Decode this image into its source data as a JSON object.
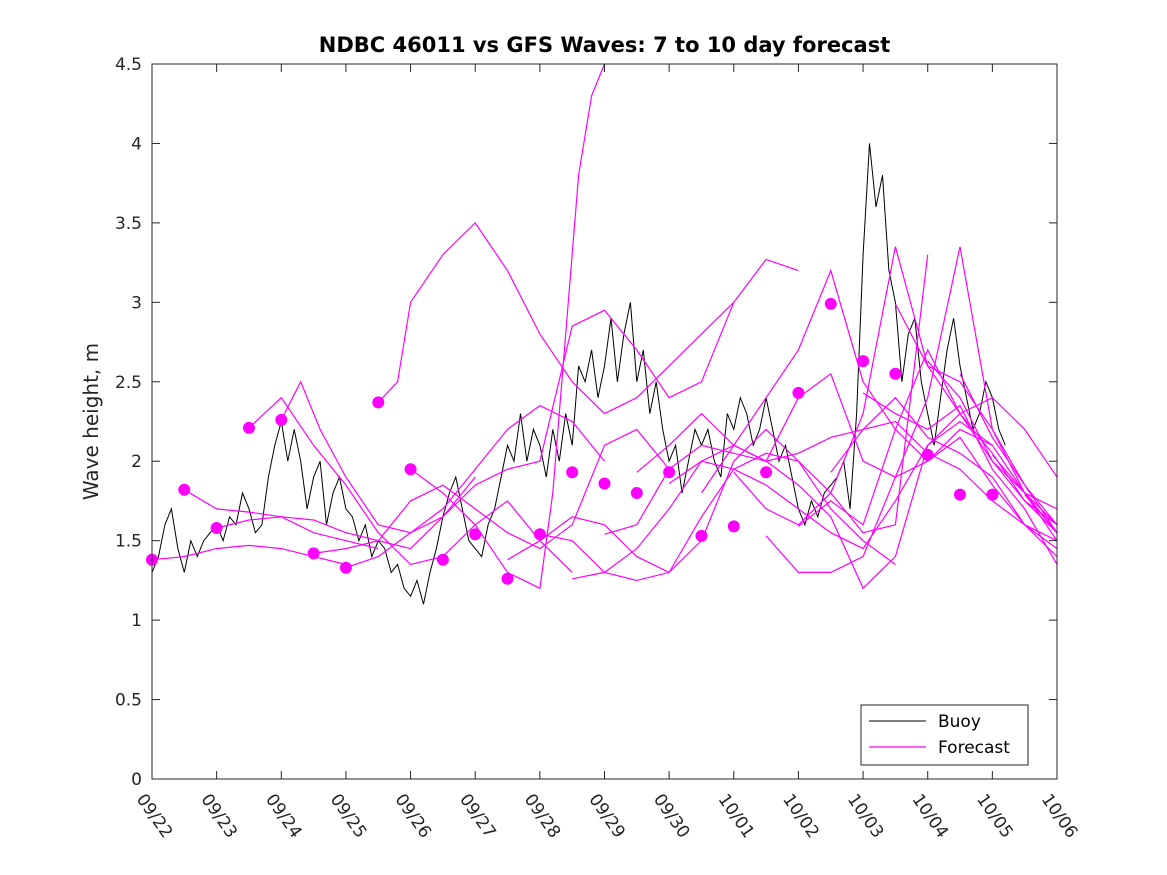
{
  "chart_data": {
    "type": "line",
    "title": "NDBC 46011 vs GFS Waves: 7 to 10 day forecast",
    "xlabel": "",
    "ylabel": "Wave height, m",
    "xlim": [
      0,
      14
    ],
    "ylim": [
      0,
      4.5
    ],
    "x_ticks": [
      "09/22",
      "09/23",
      "09/24",
      "09/25",
      "09/26",
      "09/27",
      "09/28",
      "09/29",
      "09/30",
      "10/01",
      "10/02",
      "10/03",
      "10/04",
      "10/05",
      "10/06"
    ],
    "y_ticks": [
      "0",
      "0.5",
      "1",
      "1.5",
      "2",
      "2.5",
      "3",
      "3.5",
      "4",
      "4.5"
    ],
    "legend": {
      "position": "bottom-right",
      "entries": [
        "Buoy",
        "Forecast"
      ]
    },
    "colors": {
      "buoy": "#000000",
      "forecast": "#ff00ff"
    },
    "buoy": {
      "name": "Buoy",
      "x": [
        0.0,
        0.1,
        0.2,
        0.3,
        0.4,
        0.5,
        0.6,
        0.7,
        0.8,
        0.9,
        1.0,
        1.1,
        1.2,
        1.3,
        1.4,
        1.5,
        1.6,
        1.7,
        1.8,
        1.9,
        2.0,
        2.1,
        2.2,
        2.3,
        2.4,
        2.5,
        2.6,
        2.7,
        2.8,
        2.9,
        3.0,
        3.1,
        3.2,
        3.3,
        3.4,
        3.5,
        3.6,
        3.7,
        3.8,
        3.9,
        4.0,
        4.1,
        4.2,
        4.3,
        4.4,
        4.5,
        4.6,
        4.7,
        4.8,
        4.9,
        5.0,
        5.1,
        5.2,
        5.3,
        5.4,
        5.5,
        5.6,
        5.7,
        5.8,
        5.9,
        6.0,
        6.1,
        6.2,
        6.3,
        6.4,
        6.5,
        6.6,
        6.7,
        6.8,
        6.9,
        7.0,
        7.1,
        7.2,
        7.3,
        7.4,
        7.5,
        7.6,
        7.7,
        7.8,
        7.9,
        8.0,
        8.1,
        8.2,
        8.3,
        8.4,
        8.5,
        8.6,
        8.7,
        8.8,
        8.9,
        9.0,
        9.1,
        9.2,
        9.3,
        9.4,
        9.5,
        9.6,
        9.7,
        9.8,
        9.9,
        10.0,
        10.1,
        10.2,
        10.3,
        10.4,
        10.5,
        10.6,
        10.7,
        10.8,
        10.9,
        11.0,
        11.1,
        11.2,
        11.3,
        11.4,
        11.5,
        11.6,
        11.7,
        11.8,
        11.9,
        12.0,
        12.1,
        12.2,
        12.3,
        12.4,
        12.5,
        12.6,
        12.7,
        12.8,
        12.9,
        13.0,
        13.1,
        13.2
      ],
      "y": [
        1.3,
        1.4,
        1.6,
        1.7,
        1.45,
        1.3,
        1.5,
        1.4,
        1.5,
        1.55,
        1.6,
        1.5,
        1.65,
        1.6,
        1.8,
        1.7,
        1.55,
        1.6,
        1.9,
        2.1,
        2.25,
        2.0,
        2.2,
        2.0,
        1.7,
        1.9,
        2.0,
        1.6,
        1.8,
        1.9,
        1.7,
        1.65,
        1.5,
        1.6,
        1.4,
        1.5,
        1.45,
        1.3,
        1.35,
        1.2,
        1.15,
        1.25,
        1.1,
        1.3,
        1.45,
        1.65,
        1.8,
        1.9,
        1.7,
        1.5,
        1.45,
        1.4,
        1.6,
        1.7,
        1.9,
        2.1,
        2.0,
        2.3,
        2.0,
        2.2,
        2.1,
        1.9,
        2.2,
        2.0,
        2.3,
        2.1,
        2.6,
        2.5,
        2.7,
        2.4,
        2.6,
        2.9,
        2.5,
        2.8,
        3.0,
        2.5,
        2.7,
        2.3,
        2.5,
        2.2,
        2.0,
        2.1,
        1.8,
        2.0,
        2.2,
        2.1,
        2.2,
        2.0,
        1.9,
        2.3,
        2.2,
        2.4,
        2.3,
        2.1,
        2.2,
        2.4,
        2.2,
        2.0,
        2.1,
        1.9,
        1.7,
        1.6,
        1.75,
        1.65,
        1.8,
        1.85,
        1.9,
        2.0,
        1.7,
        2.3,
        3.3,
        4.0,
        3.6,
        3.8,
        3.2,
        3.0,
        2.5,
        2.8,
        2.9,
        2.5,
        2.3,
        2.1,
        2.4,
        2.7,
        2.9,
        2.6,
        2.4,
        2.2,
        2.3,
        2.5,
        2.4,
        2.2,
        2.1
      ]
    },
    "forecast": {
      "name": "Forecast",
      "series": [
        {
          "x": [
            0.0,
            0.5,
            1.0,
            1.5,
            2.0,
            2.5,
            3.0
          ],
          "y": [
            1.38,
            1.4,
            1.45,
            1.47,
            1.45,
            1.4,
            1.35
          ]
        },
        {
          "x": [
            0.5,
            1.0,
            1.5,
            2.0,
            2.5,
            3.0,
            3.5
          ],
          "y": [
            1.82,
            1.7,
            1.68,
            1.65,
            1.55,
            1.5,
            1.45
          ]
        },
        {
          "x": [
            1.0,
            1.5,
            2.0,
            2.5,
            3.0,
            3.5,
            4.0,
            4.5,
            5.0
          ],
          "y": [
            1.58,
            1.63,
            1.65,
            1.63,
            1.55,
            1.5,
            1.45,
            1.65,
            1.9
          ]
        },
        {
          "x": [
            1.5,
            2.0,
            2.5,
            3.0,
            3.5,
            4.0,
            4.5,
            5.0,
            5.5,
            6.0,
            6.5
          ],
          "y": [
            2.21,
            2.4,
            2.1,
            1.85,
            1.55,
            1.35,
            1.4,
            1.6,
            1.75,
            1.5,
            1.3
          ]
        },
        {
          "x": [
            2.0,
            2.3,
            2.6,
            3.0,
            3.5,
            4.0,
            4.5,
            5.0,
            5.5,
            6.0,
            6.5,
            7.0
          ],
          "y": [
            2.26,
            2.5,
            2.2,
            1.9,
            1.6,
            1.55,
            1.7,
            1.95,
            2.2,
            2.35,
            2.25,
            2.0
          ]
        },
        {
          "x": [
            2.5,
            3.0,
            3.5,
            4.0,
            4.5,
            5.0,
            5.5,
            6.0,
            6.5,
            7.0,
            7.5,
            8.0
          ],
          "y": [
            1.42,
            1.45,
            1.5,
            1.75,
            1.85,
            1.7,
            1.55,
            1.45,
            1.6,
            2.1,
            2.2,
            1.95
          ]
        },
        {
          "x": [
            3.0,
            3.5,
            4.0,
            4.5,
            5.0,
            5.5,
            6.0,
            6.5,
            7.0,
            7.5,
            8.0,
            8.5,
            9.0
          ],
          "y": [
            1.33,
            1.4,
            1.55,
            1.65,
            1.85,
            1.95,
            2.0,
            2.85,
            2.95,
            2.7,
            2.4,
            2.5,
            3.0
          ]
        },
        {
          "x": [
            3.5,
            3.8,
            4.0,
            4.5,
            5.0,
            5.5,
            6.0,
            6.5,
            7.0,
            7.5,
            8.0,
            8.5,
            9.0,
            9.5,
            10.0
          ],
          "y": [
            2.37,
            2.5,
            3.0,
            3.3,
            3.5,
            3.2,
            2.8,
            2.5,
            2.3,
            2.4,
            2.6,
            2.8,
            3.0,
            3.27,
            3.2
          ]
        },
        {
          "x": [
            4.0,
            4.5,
            5.0,
            5.5,
            6.0,
            6.2,
            6.4,
            6.6,
            6.8,
            7.0
          ],
          "y": [
            1.95,
            1.8,
            1.6,
            1.3,
            1.2,
            1.8,
            2.8,
            3.8,
            4.3,
            4.5
          ]
        },
        {
          "x": [
            5.5,
            6.0,
            6.5,
            7.0,
            7.5,
            8.0,
            8.5,
            9.0,
            9.5,
            10.0,
            10.5,
            11.0,
            11.5
          ],
          "y": [
            1.38,
            1.5,
            1.65,
            1.6,
            1.4,
            1.3,
            1.5,
            2.0,
            2.2,
            2.0,
            1.7,
            1.5,
            1.35
          ]
        },
        {
          "x": [
            6.0,
            6.5,
            7.0,
            7.5,
            8.0,
            8.5,
            9.0,
            9.5,
            10.0,
            10.5,
            11.0,
            11.5,
            12.0
          ],
          "y": [
            1.54,
            1.5,
            1.3,
            1.25,
            1.3,
            1.65,
            1.95,
            2.05,
            2.0,
            1.8,
            1.55,
            1.6,
            3.3
          ]
        },
        {
          "x": [
            6.5,
            7.0,
            7.5,
            8.0,
            8.5,
            9.0,
            9.5,
            10.0,
            10.5,
            11.0,
            11.5,
            12.0,
            12.5,
            13.0
          ],
          "y": [
            1.26,
            1.3,
            1.45,
            1.7,
            2.0,
            2.1,
            2.0,
            1.85,
            1.65,
            1.2,
            1.4,
            2.1,
            2.25,
            2.1
          ]
        },
        {
          "x": [
            7.0,
            7.5,
            8.0,
            8.5,
            9.0,
            9.5,
            10.0,
            10.5,
            11.0,
            11.5,
            12.0,
            12.5,
            13.0,
            13.5,
            14.0
          ],
          "y": [
            1.54,
            1.6,
            1.95,
            2.1,
            2.05,
            2.0,
            2.05,
            2.15,
            2.2,
            2.25,
            2.05,
            1.95,
            1.75,
            1.6,
            1.5
          ]
        },
        {
          "x": [
            7.5,
            8.0,
            8.5,
            9.0,
            9.5,
            10.0,
            10.5,
            11.0,
            11.5,
            12.0,
            12.5,
            13.0,
            13.5,
            14.0
          ],
          "y": [
            1.93,
            2.1,
            2.3,
            2.1,
            2.0,
            2.4,
            2.55,
            2.0,
            1.9,
            2.0,
            2.15,
            1.85,
            1.6,
            1.45
          ]
        },
        {
          "x": [
            8.0,
            8.5,
            9.0,
            9.5,
            10.0,
            10.5,
            11.0,
            11.5,
            12.0,
            12.5,
            13.0,
            13.5,
            14.0
          ],
          "y": [
            1.86,
            2.0,
            1.95,
            1.85,
            1.7,
            1.55,
            1.45,
            1.75,
            2.1,
            2.3,
            2.4,
            2.2,
            1.9
          ]
        },
        {
          "x": [
            8.5,
            9.0,
            9.5,
            10.0,
            10.5,
            11.0,
            11.5,
            12.0,
            12.5,
            13.0,
            13.5,
            14.0
          ],
          "y": [
            1.8,
            2.1,
            2.4,
            2.7,
            3.2,
            2.5,
            2.2,
            2.0,
            2.2,
            2.1,
            1.8,
            1.6
          ]
        },
        {
          "x": [
            9.0,
            9.5,
            10.0,
            10.5,
            11.0,
            11.5,
            12.0,
            12.5,
            13.0,
            13.5,
            14.0
          ],
          "y": [
            1.93,
            1.7,
            1.6,
            1.8,
            2.3,
            3.35,
            2.6,
            2.5,
            2.2,
            1.85,
            1.55
          ]
        },
        {
          "x": [
            9.5,
            10.0,
            10.5,
            11.0,
            11.5,
            12.0,
            12.5,
            13.0,
            13.5,
            14.0
          ],
          "y": [
            1.53,
            1.3,
            1.3,
            1.4,
            1.9,
            2.4,
            3.35,
            2.2,
            1.8,
            1.7
          ]
        },
        {
          "x": [
            10.0,
            10.5,
            11.0,
            11.5,
            12.0,
            12.5,
            13.0,
            13.5,
            14.0
          ],
          "y": [
            1.59,
            1.75,
            1.6,
            2.2,
            2.7,
            2.3,
            2.0,
            1.8,
            1.5
          ]
        },
        {
          "x": [
            10.5,
            11.0,
            11.5,
            12.0,
            12.5,
            13.0,
            13.5,
            14.0
          ],
          "y": [
            1.93,
            2.2,
            2.4,
            2.15,
            2.05,
            1.9,
            1.6,
            1.4
          ]
        },
        {
          "x": [
            11.0,
            11.5,
            12.0,
            12.5,
            13.0,
            13.5,
            14.0
          ],
          "y": [
            2.43,
            2.3,
            2.2,
            2.35,
            1.95,
            1.7,
            1.35
          ]
        },
        {
          "x": [
            11.5,
            12.0,
            12.5,
            13.0,
            13.5,
            14.0
          ],
          "y": [
            2.99,
            2.6,
            2.3,
            2.05,
            1.75,
            1.6
          ]
        },
        {
          "x": [
            12.0,
            12.5,
            13.0,
            13.5,
            14.0
          ],
          "y": [
            2.63,
            2.4,
            2.0,
            1.75,
            1.55
          ]
        },
        {
          "x": [
            12.5,
            13.0,
            13.5,
            14.0
          ],
          "y": [
            2.55,
            2.15,
            1.85,
            1.6
          ]
        },
        {
          "x": [
            13.0,
            13.5,
            14.0
          ],
          "y": [
            2.04,
            1.8,
            1.55
          ]
        },
        {
          "x": [
            13.5,
            14.0
          ],
          "y": [
            1.79,
            1.55
          ]
        },
        {
          "x": [
            14.0
          ],
          "y": [
            1.79
          ]
        }
      ],
      "markers": [
        {
          "x": 0.0,
          "y": 1.38
        },
        {
          "x": 0.5,
          "y": 1.82
        },
        {
          "x": 1.0,
          "y": 1.58
        },
        {
          "x": 1.5,
          "y": 2.21
        },
        {
          "x": 2.0,
          "y": 2.26
        },
        {
          "x": 2.5,
          "y": 1.42
        },
        {
          "x": 3.0,
          "y": 1.33
        },
        {
          "x": 3.5,
          "y": 2.37
        },
        {
          "x": 4.0,
          "y": 1.95
        },
        {
          "x": 4.5,
          "y": 1.38
        },
        {
          "x": 5.0,
          "y": 1.54
        },
        {
          "x": 5.5,
          "y": 1.26
        },
        {
          "x": 6.0,
          "y": 1.54
        },
        {
          "x": 6.5,
          "y": 1.93
        },
        {
          "x": 7.0,
          "y": 1.86
        },
        {
          "x": 7.5,
          "y": 1.8
        },
        {
          "x": 8.0,
          "y": 1.93
        },
        {
          "x": 8.5,
          "y": 1.53
        },
        {
          "x": 9.0,
          "y": 1.59
        },
        {
          "x": 9.5,
          "y": 1.93
        },
        {
          "x": 10.0,
          "y": 2.43
        },
        {
          "x": 10.5,
          "y": 2.99
        },
        {
          "x": 11.0,
          "y": 2.63
        },
        {
          "x": 11.5,
          "y": 2.55
        },
        {
          "x": 12.0,
          "y": 2.04
        },
        {
          "x": 12.5,
          "y": 1.79
        },
        {
          "x": 13.0,
          "y": 1.79
        }
      ]
    }
  }
}
